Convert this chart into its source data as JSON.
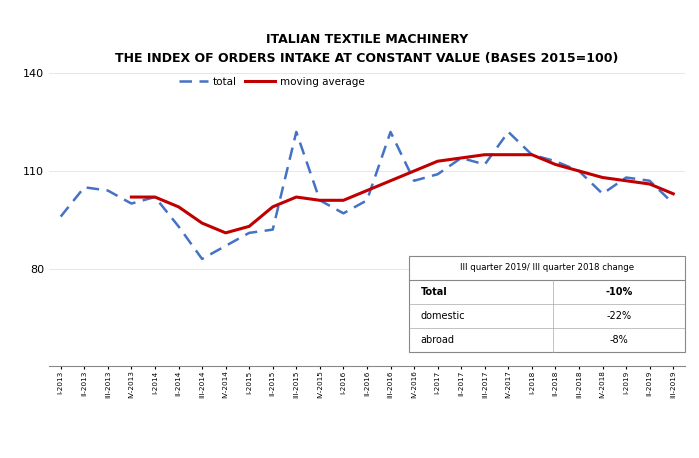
{
  "title_line1": "ITALIAN TEXTILE MACHINERY",
  "title_line2": "THE INDEX OF ORDERS INTAKE AT CONSTANT VALUE (BASES 2015=100)",
  "xlabels": [
    "I-2013",
    "II-2013",
    "III-2013",
    "IV-2013",
    "I-2014",
    "II-2014",
    "III-2014",
    "IV-2014",
    "I-2015",
    "II-2015",
    "III-2015",
    "IV-2015",
    "I-2016",
    "II-2016",
    "III-2016",
    "IV-2016",
    "I-2017",
    "II-2017",
    "III-2017",
    "IV-2017",
    "I-2018",
    "II-2018",
    "III-2018",
    "IV-2018",
    "I-2019",
    "II-2019",
    "III-2019"
  ],
  "total": [
    96,
    105,
    104,
    100,
    102,
    93,
    83,
    87,
    91,
    92,
    122,
    101,
    97,
    101,
    122,
    107,
    109,
    114,
    112,
    122,
    115,
    113,
    110,
    103,
    108,
    107,
    100
  ],
  "moving_avg": [
    null,
    null,
    null,
    102,
    102,
    99,
    94,
    91,
    93,
    99,
    102,
    101,
    101,
    104,
    107,
    110,
    113,
    114,
    115,
    115,
    115,
    112,
    110,
    108,
    107,
    106,
    103
  ],
  "total_color": "#4472C4",
  "moving_avg_color": "#C00000",
  "ylim": [
    50,
    140
  ],
  "yticks": [
    80,
    110,
    140
  ],
  "table_title": "III quarter 2019/ III quarter 2018 change",
  "table_rows": [
    [
      "Total",
      "-10%"
    ],
    [
      "domestic",
      "-22%"
    ],
    [
      "abroad",
      "-8%"
    ]
  ],
  "background_color": "#FFFFFF"
}
